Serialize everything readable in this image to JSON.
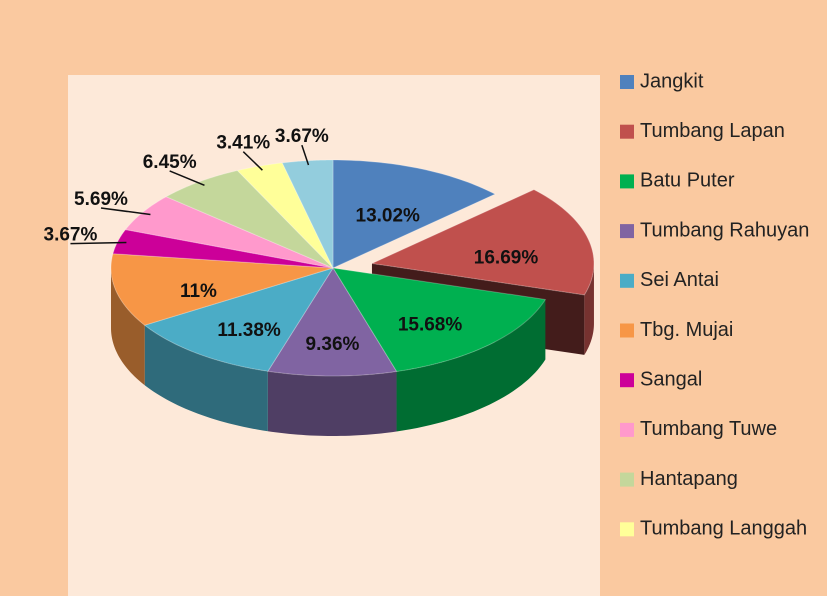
{
  "chart_data": {
    "type": "pie3d",
    "categories": [
      "Jangkit",
      "Tumbang Lapan",
      "Batu Puter",
      "Tumbang Rahuyan",
      "Sei Antai",
      "Tbg. Mujai",
      "Sangal",
      "Tumbang Tuwe",
      "Hantapang",
      "Tumbang Langgah",
      null
    ],
    "values": [
      13.02,
      16.69,
      15.68,
      9.36,
      11.38,
      11,
      3.67,
      5.69,
      6.45,
      3.41,
      3.67
    ],
    "value_labels": [
      "13.02%",
      "16.69%",
      "15.68%",
      "9.36%",
      "11.38%",
      "11%",
      "3.67%",
      "5.69%",
      "6.45%",
      "3.41%",
      "3.67%"
    ],
    "colors": [
      "#4f81bd",
      "#c0504d",
      "#00b050",
      "#8064a2",
      "#4bacc6",
      "#f79646",
      "#cc0099",
      "#ff99cc",
      "#c4d79b",
      "#ffff99",
      "#93cddd"
    ],
    "exploded": [
      false,
      true,
      false,
      false,
      false,
      false,
      false,
      false,
      false,
      false,
      false
    ],
    "legend": "right"
  }
}
